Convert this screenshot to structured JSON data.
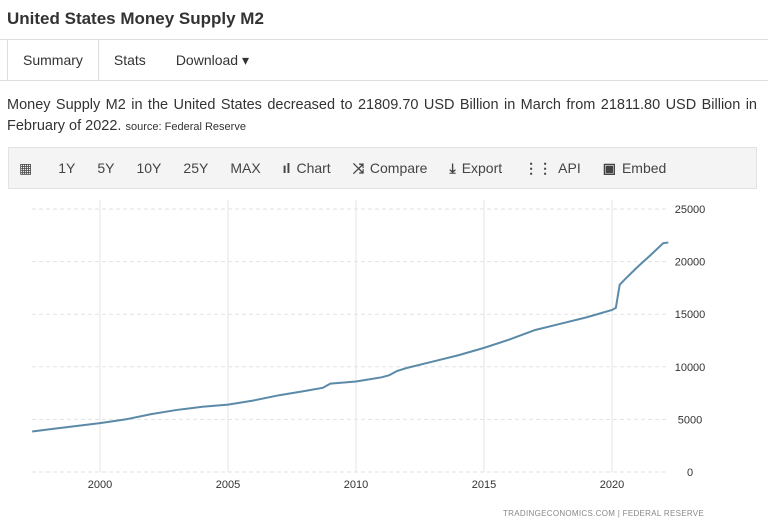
{
  "header": {
    "title": "United States Money Supply M2"
  },
  "tabs": [
    {
      "label": "Summary"
    },
    {
      "label": "Stats"
    },
    {
      "label": "Download ▾"
    }
  ],
  "description": {
    "text": "Money Supply M2 in the United States decreased to 21809.70 USD Billion in March from 21811.80 USD Billion in February of 2022.",
    "source": "source: Federal Reserve"
  },
  "toolbar": {
    "calendar": "▦",
    "items": [
      "1Y",
      "5Y",
      "10Y",
      "25Y",
      "MAX"
    ],
    "chart": "Chart",
    "compare": "Compare",
    "export": "Export",
    "api": "API",
    "embed": "Embed"
  },
  "footer": "TRADINGECONOMICS.COM  |  FEDERAL RESERVE",
  "chart_data": {
    "type": "line",
    "title": "United States Money Supply M2",
    "ylabel": "USD Billion",
    "ylim": [
      0,
      25000
    ],
    "xlim": [
      1997.35,
      2022.2
    ],
    "x_ticks": [
      2000,
      2005,
      2010,
      2015,
      2020
    ],
    "y_ticks": [
      0,
      5000,
      10000,
      15000,
      20000,
      25000
    ],
    "line_color": "#5b8aa8",
    "x": [
      1997.35,
      1998,
      1999,
      2000,
      2001,
      2002,
      2003,
      2003.5,
      2004,
      2005,
      2006,
      2007,
      2008,
      2008.7,
      2009,
      2010,
      2011,
      2011.3,
      2011.6,
      2012,
      2013,
      2014,
      2015,
      2016,
      2017,
      2018,
      2019,
      2020.0,
      2020.15,
      2020.3,
      2020.5,
      2021,
      2021.5,
      2022,
      2022.2
    ],
    "values": [
      3850,
      4050,
      4350,
      4650,
      5000,
      5500,
      5900,
      6050,
      6200,
      6400,
      6800,
      7300,
      7700,
      8000,
      8400,
      8600,
      9000,
      9200,
      9600,
      9900,
      10500,
      11100,
      11800,
      12600,
      13500,
      14100,
      14700,
      15400,
      15600,
      17800,
      18300,
      19500,
      20600,
      21750,
      21810
    ]
  }
}
